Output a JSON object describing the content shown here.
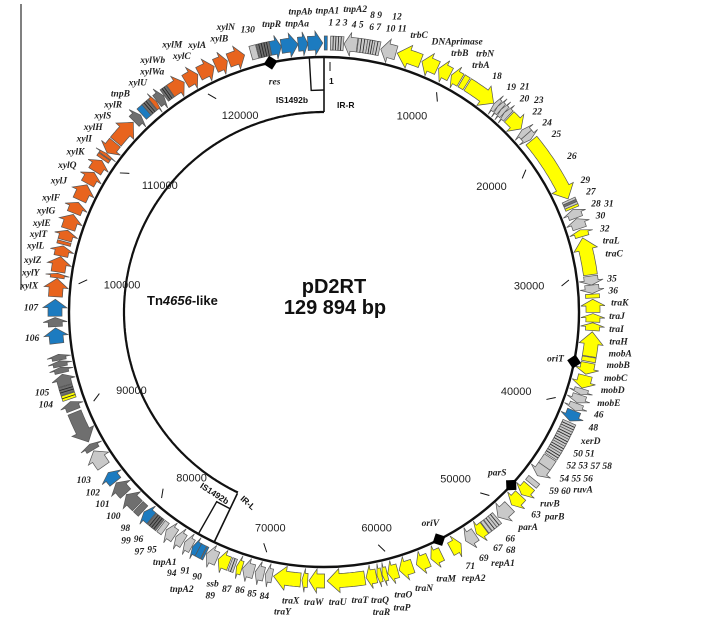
{
  "plasmid": {
    "name": "pD2RT",
    "size_label": "129 894 bp",
    "length": 129894
  },
  "tn_region": {
    "prefix": "Tn",
    "number": "4656",
    "suffix": "-like",
    "start": 74150,
    "end": 129894
  },
  "is_elements": [
    {
      "label": "IS1492b",
      "ir_label": "IR-R",
      "start": 128700,
      "end": 129894
    },
    {
      "label": "IS1492b",
      "ir_label": "IR-L",
      "start": 74150,
      "end": 75590
    }
  ],
  "start_marker": "1",
  "ticks": [
    {
      "position": 10000,
      "label": "10000"
    },
    {
      "position": 20000,
      "label": "20000"
    },
    {
      "position": 30000,
      "label": "30000"
    },
    {
      "position": 40000,
      "label": "40000"
    },
    {
      "position": 50000,
      "label": "50000"
    },
    {
      "position": 60000,
      "label": "60000"
    },
    {
      "position": 70000,
      "label": "70000"
    },
    {
      "position": 80000,
      "label": "80000"
    },
    {
      "position": 90000,
      "label": "90000"
    },
    {
      "position": 100000,
      "label": "100000"
    },
    {
      "position": 110000,
      "label": "110000"
    },
    {
      "position": 120000,
      "label": "120000"
    }
  ],
  "sites": [
    {
      "label": "res",
      "position": 125530
    },
    {
      "label": "oriT",
      "position": 36520
    },
    {
      "label": "parS",
      "position": 47900
    },
    {
      "label": "oriV",
      "position": 55280
    }
  ],
  "palette": {
    "Y": "#ffff00",
    "O": "#e8641e",
    "B": "#1c7bc0",
    "L": "#c9c9c9",
    "D": "#6f6f6f",
    "stroke": "#555555",
    "circle": "#111111",
    "bracket": "#808080"
  },
  "genes": [
    {
      "label": "1 2 3",
      "start": 500,
      "end": 1500,
      "strand": 0,
      "color": "L",
      "striped": true
    },
    {
      "label": "4 5",
      "start": 1550,
      "end": 2550,
      "strand": -1,
      "color": "L"
    },
    {
      "label": "6 7",
      "start": 2600,
      "end": 3300,
      "strand": 0,
      "color": "L",
      "striped": true
    },
    {
      "label": "8 9",
      "start": 3300,
      "end": 3850,
      "strand": 0,
      "color": "L",
      "striped": true
    },
    {
      "label": "10 11",
      "start": 3850,
      "end": 4300,
      "strand": 0,
      "color": "L",
      "striped": true
    },
    {
      "label": "12",
      "start": 4400,
      "end": 5600,
      "strand": -1,
      "color": "L"
    },
    {
      "label": "trbC",
      "start": 5700,
      "end": 7600,
      "strand": -1,
      "color": "Y"
    },
    {
      "label": "DNAprimase",
      "start": 7700,
      "end": 9000,
      "strand": -1,
      "color": "Y"
    },
    {
      "label": "trbB",
      "start": 9100,
      "end": 10100,
      "strand": -1,
      "color": "Y"
    },
    {
      "label": "trbA",
      "start": 10200,
      "end": 11000,
      "strand": -1,
      "color": "Y"
    },
    {
      "label": "trbN",
      "start": 11100,
      "end": 11550,
      "strand": 0,
      "color": "Y"
    },
    {
      "label": "18",
      "start": 11650,
      "end": 14100,
      "strand": 1,
      "color": "Y"
    },
    {
      "label": "19",
      "start": 14150,
      "end": 14500,
      "strand": -1,
      "color": "L"
    },
    {
      "label": "20",
      "start": 14500,
      "end": 14850,
      "strand": -1,
      "color": "L"
    },
    {
      "label": "21",
      "start": 14850,
      "end": 15200,
      "strand": -1,
      "color": "L"
    },
    {
      "label": "22",
      "start": 15200,
      "end": 15600,
      "strand": -1,
      "color": "L"
    },
    {
      "label": "23",
      "start": 15700,
      "end": 17000,
      "strand": 1,
      "color": "Y"
    },
    {
      "label": "24",
      "start": 17100,
      "end": 17600,
      "strand": -1,
      "color": "L"
    },
    {
      "label": "25",
      "start": 17600,
      "end": 18100,
      "strand": 1,
      "color": "L"
    },
    {
      "label": "26",
      "start": 18200,
      "end": 23500,
      "strand": 1,
      "color": "Y"
    },
    {
      "label": "27",
      "start": 23600,
      "end": 23780,
      "strand": 0,
      "color": "L"
    },
    {
      "label": "28",
      "start": 23780,
      "end": 23960,
      "strand": 0,
      "color": "D"
    },
    {
      "label": "29",
      "start": 23960,
      "end": 24140,
      "strand": 0,
      "color": "L"
    },
    {
      "label": "30",
      "start": 24140,
      "end": 24320,
      "strand": 0,
      "color": "Y"
    },
    {
      "label": "31",
      "start": 24400,
      "end": 25100,
      "strand": -1,
      "color": "L"
    },
    {
      "label": "32",
      "start": 25150,
      "end": 25950,
      "strand": -1,
      "color": "L"
    },
    {
      "label": "traL",
      "start": 26050,
      "end": 26600,
      "strand": -1,
      "color": "Y"
    },
    {
      "label": "traC",
      "start": 26700,
      "end": 29600,
      "strand": -1,
      "color": "Y"
    },
    {
      "label": "35",
      "start": 29700,
      "end": 30400,
      "strand": 1,
      "color": "L"
    },
    {
      "label": "36",
      "start": 30400,
      "end": 31050,
      "strand": 1,
      "color": "L"
    },
    {
      "label": "traK",
      "start": 31100,
      "end": 31400,
      "strand": 0,
      "color": "Y"
    },
    {
      "label": "traJ",
      "start": 31500,
      "end": 32500,
      "strand": -1,
      "color": "Y"
    },
    {
      "label": "traI",
      "start": 32600,
      "end": 33250,
      "strand": -1,
      "color": "Y"
    },
    {
      "label": "traH",
      "start": 33300,
      "end": 33900,
      "strand": -1,
      "color": "Y"
    },
    {
      "label": "mobA",
      "start": 34000,
      "end": 35900,
      "strand": -1,
      "color": "Y"
    },
    {
      "label": "mobB",
      "start": 35950,
      "end": 36300,
      "strand": 0,
      "color": "Y"
    },
    {
      "label": "mobC",
      "start": 36400,
      "end": 37300,
      "strand": 1,
      "color": "Y"
    },
    {
      "label": "mobD",
      "start": 37400,
      "end": 38400,
      "strand": 1,
      "color": "Y"
    },
    {
      "label": "mobE",
      "start": 38450,
      "end": 38900,
      "strand": 1,
      "color": "L"
    },
    {
      "label": "46",
      "start": 38950,
      "end": 39600,
      "strand": 1,
      "color": "L"
    },
    {
      "label": "48",
      "start": 39650,
      "end": 40200,
      "strand": 1,
      "color": "L"
    },
    {
      "label": "xerD",
      "start": 40250,
      "end": 41100,
      "strand": 1,
      "color": "B"
    },
    {
      "label": "50 51",
      "start": 41200,
      "end": 41800,
      "strand": 0,
      "color": "L",
      "striped": true
    },
    {
      "label": "52 53",
      "start": 41800,
      "end": 42400,
      "strand": 0,
      "color": "L",
      "striped": true
    },
    {
      "label": "54 55 56",
      "start": 42400,
      "end": 43000,
      "strand": 0,
      "color": "L",
      "striped": true
    },
    {
      "label": "57 58",
      "start": 43000,
      "end": 43600,
      "strand": 0,
      "color": "L",
      "striped": true
    },
    {
      "label": "59 60",
      "start": 43600,
      "end": 44200,
      "strand": 0,
      "color": "L",
      "striped": true
    },
    {
      "label": "ruvA",
      "start": 44300,
      "end": 45100,
      "strand": 0,
      "color": "L"
    },
    {
      "label": "ruvB",
      "start": 45100,
      "end": 46000,
      "strand": 1,
      "color": "L"
    },
    {
      "label": "63",
      "start": 46400,
      "end": 46800,
      "strand": 0,
      "color": "L"
    },
    {
      "label": "parB",
      "start": 47000,
      "end": 47900,
      "strand": 1,
      "color": "Y"
    },
    {
      "label": "parA",
      "start": 48000,
      "end": 49000,
      "strand": 1,
      "color": "Y"
    },
    {
      "label": "66",
      "start": 49200,
      "end": 50400,
      "strand": 1,
      "color": "L"
    },
    {
      "label": "67",
      "start": 50500,
      "end": 50950,
      "strand": 0,
      "color": "L",
      "striped": true
    },
    {
      "label": "68",
      "start": 50950,
      "end": 51400,
      "strand": 0,
      "color": "L",
      "striped": true
    },
    {
      "label": "69",
      "start": 51450,
      "end": 51700,
      "strand": 0,
      "color": "L"
    },
    {
      "label": "repA1",
      "start": 51750,
      "end": 52500,
      "strand": 1,
      "color": "Y"
    },
    {
      "label": "71",
      "start": 52600,
      "end": 53500,
      "strand": 1,
      "color": "L"
    },
    {
      "label": "repA2",
      "start": 53900,
      "end": 54800,
      "strand": -1,
      "color": "Y"
    },
    {
      "label": "traM",
      "start": 55600,
      "end": 56500,
      "strand": 1,
      "color": "Y"
    },
    {
      "label": "traN",
      "start": 56700,
      "end": 57700,
      "strand": 1,
      "color": "Y"
    },
    {
      "label": "traO",
      "start": 58000,
      "end": 59100,
      "strand": 1,
      "color": "Y"
    },
    {
      "label": "traP",
      "start": 59200,
      "end": 60000,
      "strand": 1,
      "color": "Y"
    },
    {
      "label": "traQ",
      "start": 60050,
      "end": 60450,
      "strand": 1,
      "color": "Y"
    },
    {
      "label": "traR",
      "start": 60480,
      "end": 60850,
      "strand": 1,
      "color": "Y"
    },
    {
      "label": "traT",
      "start": 60900,
      "end": 61700,
      "strand": 1,
      "color": "Y"
    },
    {
      "label": "traU",
      "start": 61800,
      "end": 64700,
      "strand": 1,
      "color": "Y"
    },
    {
      "label": "traW",
      "start": 64900,
      "end": 66100,
      "strand": 1,
      "color": "Y"
    },
    {
      "label": "traX",
      "start": 66200,
      "end": 66650,
      "strand": 1,
      "color": "Y"
    },
    {
      "label": "traY",
      "start": 66750,
      "end": 68850,
      "strand": 1,
      "color": "Y"
    },
    {
      "label": "84",
      "start": 68950,
      "end": 69500,
      "strand": 1,
      "color": "L"
    },
    {
      "label": "85",
      "start": 69600,
      "end": 70300,
      "strand": 1,
      "color": "L"
    },
    {
      "label": "86",
      "start": 70400,
      "end": 71300,
      "strand": 1,
      "color": "L"
    },
    {
      "label": "87",
      "start": 71350,
      "end": 71800,
      "strand": 1,
      "color": "Y"
    },
    {
      "label": "ssb",
      "start": 71900,
      "end": 72300,
      "strand": 0,
      "color": "L",
      "striped": true
    },
    {
      "label": "89",
      "start": 72400,
      "end": 73300,
      "strand": 1,
      "color": "Y"
    },
    {
      "label": "90",
      "start": 73400,
      "end": 74300,
      "strand": 1,
      "color": "L"
    },
    {
      "label": "91",
      "start": 74350,
      "end": 74500,
      "strand": 0,
      "color": "B"
    },
    {
      "label": "tnpA2",
      "start": 74550,
      "end": 75000,
      "strand": 0,
      "color": "B"
    },
    {
      "label": "tnpA1",
      "start": 75000,
      "end": 75500,
      "strand": 1,
      "color": "B"
    },
    {
      "label": "94",
      "start": 75550,
      "end": 76200,
      "strand": 1,
      "color": "L"
    },
    {
      "label": "95",
      "start": 76300,
      "end": 77000,
      "strand": 1,
      "color": "L"
    },
    {
      "label": "96",
      "start": 77100,
      "end": 77900,
      "strand": 1,
      "color": "L"
    },
    {
      "label": "97",
      "start": 78000,
      "end": 78400,
      "strand": 0,
      "color": "L"
    },
    {
      "label": "98",
      "start": 78500,
      "end": 79300,
      "strand": 0,
      "color": "D",
      "striped": true
    },
    {
      "label": "99",
      "start": 79350,
      "end": 80100,
      "strand": 1,
      "color": "B"
    },
    {
      "label": "100",
      "start": 80200,
      "end": 80700,
      "strand": 0,
      "color": "D"
    },
    {
      "label": "101",
      "start": 80800,
      "end": 82000,
      "strand": 1,
      "color": "D"
    },
    {
      "label": "102",
      "start": 82100,
      "end": 83200,
      "strand": 1,
      "color": "D"
    },
    {
      "label": "103",
      "start": 83300,
      "end": 84200,
      "strand": 1,
      "color": "B"
    },
    {
      "label": "",
      "start": 84800,
      "end": 86200,
      "strand": 1,
      "color": "L"
    },
    {
      "label": "",
      "start": 86300,
      "end": 86800,
      "strand": 1,
      "color": "D"
    },
    {
      "label": "",
      "start": 87000,
      "end": 89500,
      "strand": -1,
      "color": "D"
    },
    {
      "label": "",
      "start": 89700,
      "end": 90400,
      "strand": 1,
      "color": "D"
    },
    {
      "label": "104",
      "start": 90600,
      "end": 91000,
      "strand": 0,
      "color": "Y",
      "striped": true
    },
    {
      "label": "105",
      "start": 91050,
      "end": 91650,
      "strand": 0,
      "color": "D",
      "striped": true
    },
    {
      "label": "",
      "start": 91700,
      "end": 92600,
      "strand": 1,
      "color": "D"
    },
    {
      "label": "",
      "start": 92700,
      "end": 93150,
      "strand": 1,
      "color": "D"
    },
    {
      "label": "",
      "start": 93200,
      "end": 93650,
      "strand": 1,
      "color": "D"
    },
    {
      "label": "",
      "start": 93700,
      "end": 94150,
      "strand": 1,
      "color": "D"
    },
    {
      "label": "106",
      "start": 95000,
      "end": 96200,
      "strand": 1,
      "color": "B"
    },
    {
      "label": "",
      "start": 96300,
      "end": 97000,
      "strand": 1,
      "color": "D"
    },
    {
      "label": "107",
      "start": 97100,
      "end": 98400,
      "strand": 1,
      "color": "B"
    },
    {
      "label": "xylX",
      "start": 98600,
      "end": 100000,
      "strand": 1,
      "color": "O"
    },
    {
      "label": "xylY",
      "start": 100050,
      "end": 100400,
      "strand": 1,
      "color": "O"
    },
    {
      "label": "xylZ",
      "start": 100500,
      "end": 101700,
      "strand": 1,
      "color": "O"
    },
    {
      "label": "xylL",
      "start": 101750,
      "end": 102550,
      "strand": 1,
      "color": "O"
    },
    {
      "label": "xylT",
      "start": 102650,
      "end": 102900,
      "strand": 0,
      "color": "O"
    },
    {
      "label": "xylE",
      "start": 103000,
      "end": 103800,
      "strand": 1,
      "color": "O"
    },
    {
      "label": "xylG",
      "start": 103900,
      "end": 105100,
      "strand": 1,
      "color": "O"
    },
    {
      "label": "xylF",
      "start": 105200,
      "end": 106100,
      "strand": 1,
      "color": "O"
    },
    {
      "label": "xylJ",
      "start": 106300,
      "end": 107600,
      "strand": 1,
      "color": "O"
    },
    {
      "label": "xylQ",
      "start": 107700,
      "end": 108700,
      "strand": 1,
      "color": "O"
    },
    {
      "label": "xylK",
      "start": 108800,
      "end": 109800,
      "strand": 1,
      "color": "O"
    },
    {
      "label": "xylI",
      "start": 109900,
      "end": 110150,
      "strand": 0,
      "color": "O"
    },
    {
      "label": "xylH",
      "start": 110200,
      "end": 110450,
      "strand": 1,
      "color": "O"
    },
    {
      "label": "xylS",
      "start": 110500,
      "end": 111500,
      "strand": -1,
      "color": "O"
    },
    {
      "label": "xylR",
      "start": 111600,
      "end": 113600,
      "strand": 1,
      "color": "O"
    },
    {
      "label": "tnpB",
      "start": 113700,
      "end": 114400,
      "strand": 1,
      "color": "D"
    },
    {
      "label": "",
      "start": 114500,
      "end": 115000,
      "strand": 0,
      "color": "B"
    },
    {
      "label": "",
      "start": 115000,
      "end": 115600,
      "strand": 0,
      "color": "D",
      "striped": true
    },
    {
      "label": "xylU",
      "start": 115650,
      "end": 116000,
      "strand": 1,
      "color": "O"
    },
    {
      "label": "xylWa",
      "start": 116050,
      "end": 116700,
      "strand": 1,
      "color": "D"
    },
    {
      "label": "xylWb",
      "start": 116750,
      "end": 117300,
      "strand": 0,
      "color": "D",
      "striped": true
    },
    {
      "label": "xylC",
      "start": 117350,
      "end": 118600,
      "strand": 1,
      "color": "O"
    },
    {
      "label": "xylM",
      "start": 118700,
      "end": 119800,
      "strand": 1,
      "color": "O"
    },
    {
      "label": "xylA",
      "start": 119900,
      "end": 121200,
      "strand": 1,
      "color": "O"
    },
    {
      "label": "xylB",
      "start": 121300,
      "end": 122300,
      "strand": 1,
      "color": "O"
    },
    {
      "label": "xylN",
      "start": 122400,
      "end": 123700,
      "strand": 1,
      "color": "O"
    },
    {
      "label": "130",
      "start": 124200,
      "end": 124700,
      "strand": 0,
      "color": "L"
    },
    {
      "label": "",
      "start": 124750,
      "end": 125750,
      "strand": 0,
      "color": "D",
      "striped": true
    },
    {
      "label": "tnpR",
      "start": 125750,
      "end": 126600,
      "strand": 1,
      "color": "B"
    },
    {
      "label": "tnpAa",
      "start": 126600,
      "end": 127900,
      "strand": 1,
      "color": "B"
    },
    {
      "label": "tnpAb",
      "start": 127900,
      "end": 128650,
      "strand": 1,
      "color": "B"
    },
    {
      "label": "tnpA1",
      "start": 128650,
      "end": 129800,
      "strand": 1,
      "color": "B"
    },
    {
      "label": "tnpA2",
      "start": 20,
      "end": 250,
      "strand": 0,
      "color": "B"
    }
  ]
}
